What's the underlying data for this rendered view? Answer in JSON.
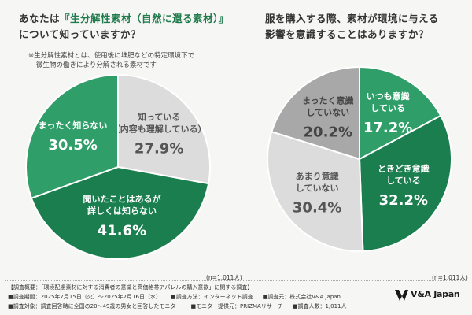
{
  "chart_data": [
    {
      "type": "pie",
      "title": "あなたは『生分解性素材（自然に還る素材）』について知っていますか？",
      "title_parts": [
        "あなたは",
        "『生分解性素材（自然に還る素材）』",
        "について知っていますか？"
      ],
      "note": [
        "※生分解性素材とは、使用後に堆肥などの特定環境下で",
        "微生物の働きにより分解される素材です"
      ],
      "slices": [
        {
          "label_lines": [
            "知っている",
            "（内容も理解している）"
          ],
          "value": 27.9,
          "display": "27.9%",
          "color": "#dcdcdc",
          "text_color": "#555555"
        },
        {
          "label_lines": [
            "聞いたことはあるが",
            "詳しくは知らない"
          ],
          "value": 41.6,
          "display": "41.6%",
          "color": "#1a7e4e",
          "text_color": "#ffffff"
        },
        {
          "label_lines": [
            "まったく知らない"
          ],
          "value": 30.5,
          "display": "30.5%",
          "color": "#2f9e69",
          "text_color": "#ffffff"
        }
      ],
      "n": "(n=1,011人)"
    },
    {
      "type": "pie",
      "title": "服を購入する際、素材が環境に与える影響を意識することはありますか？",
      "title_parts": [
        "服を購入する際、",
        "素材が環境に与える",
        "影響を意識することはありますか？"
      ],
      "slices": [
        {
          "label_lines": [
            "いつも意識",
            "している"
          ],
          "value": 17.2,
          "display": "17.2%",
          "color": "#2f9e69",
          "text_color": "#ffffff"
        },
        {
          "label_lines": [
            "ときどき意識",
            "している"
          ],
          "value": 32.2,
          "display": "32.2%",
          "color": "#1a7e4e",
          "text_color": "#ffffff"
        },
        {
          "label_lines": [
            "あまり意識",
            "していない"
          ],
          "value": 30.4,
          "display": "30.4%",
          "color": "#dcdcdc",
          "text_color": "#555555"
        },
        {
          "label_lines": [
            "まったく意識",
            "していない"
          ],
          "value": 20.2,
          "display": "20.2%",
          "color": "#a8a8a8",
          "text_color": "#444444"
        }
      ],
      "n": "(n=1,011人)"
    }
  ],
  "footer": {
    "overview": "【調査概要：「環境配慮素材に対する消費者の意識と高価格帯アパレルの購入意欲」に関する調査】",
    "period": "■調査期間：2025年7月15日（火）～2025年7月16日（水）",
    "method": "■調査方法：インターネット調査",
    "source": "■調査元：株式会社V&A Japan",
    "target": "■調査対象：調査回答時に全国の20～49歳の男女と回答したモニター",
    "provider": "■モニター提供元：PRIZMAリサーチ",
    "count": "■調査人数：1,011人"
  },
  "logo": {
    "text": "V&A Japan"
  }
}
